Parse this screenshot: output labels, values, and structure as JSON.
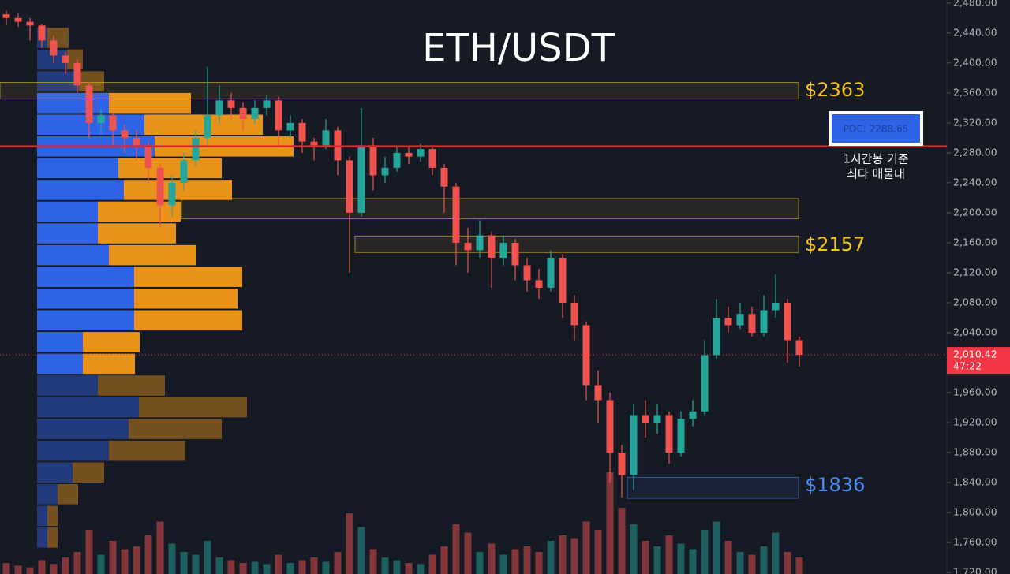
{
  "chart_data": {
    "type": "candlestick",
    "title": "ETH/USDT",
    "up_color": "#26a69a",
    "down_color": "#ef5350",
    "ylim": [
      1718,
      2484
    ],
    "yticks": [
      {
        "value": 2480,
        "label": "2,480.00"
      },
      {
        "value": 2440,
        "label": "2,440.00"
      },
      {
        "value": 2400,
        "label": "2,400.00"
      },
      {
        "value": 2360,
        "label": "2,360.00"
      },
      {
        "value": 2320,
        "label": "2,320.00"
      },
      {
        "value": 2280,
        "label": "2,280.00"
      },
      {
        "value": 2240,
        "label": "2,240.00"
      },
      {
        "value": 2200,
        "label": "2,200.00"
      },
      {
        "value": 2160,
        "label": "2,160.00"
      },
      {
        "value": 2120,
        "label": "2,120.00"
      },
      {
        "value": 2080,
        "label": "2,080.00"
      },
      {
        "value": 2040,
        "label": "2,040.00"
      },
      {
        "value": 1960,
        "label": "1,960.00"
      },
      {
        "value": 1920,
        "label": "1,920.00"
      },
      {
        "value": 1880,
        "label": "1,880.00"
      },
      {
        "value": 1840,
        "label": "1,840.00"
      },
      {
        "value": 1800,
        "label": "1,800.00"
      },
      {
        "value": 1760,
        "label": "1,760.00"
      },
      {
        "value": 1720,
        "label": "1,720.00"
      }
    ],
    "open": [
      2465,
      2460,
      2455,
      2450,
      2430,
      2410,
      2400,
      2370,
      2320,
      2330,
      2310,
      2300,
      2290,
      2260,
      2210,
      2240,
      2270,
      2300,
      2330,
      2350,
      2340,
      2325,
      2340,
      2350,
      2310,
      2320,
      2295,
      2290,
      2310,
      2270,
      2200,
      2290,
      2250,
      2260,
      2280,
      2275,
      2285,
      2260,
      2235,
      2160,
      2150,
      2170,
      2140,
      2160,
      2130,
      2110,
      2100,
      2140,
      2080,
      2050,
      1970,
      1950,
      1880,
      1850,
      1930,
      1920,
      1930,
      1880,
      1925,
      1935,
      2010,
      2060,
      2050,
      2065,
      2040,
      2070,
      2080,
      2030
    ],
    "high": [
      2470,
      2466,
      2460,
      2452,
      2436,
      2415,
      2405,
      2375,
      2340,
      2335,
      2318,
      2310,
      2295,
      2265,
      2250,
      2280,
      2310,
      2395,
      2370,
      2360,
      2348,
      2350,
      2358,
      2355,
      2330,
      2325,
      2300,
      2325,
      2315,
      2275,
      2340,
      2300,
      2275,
      2290,
      2288,
      2292,
      2290,
      2265,
      2240,
      2180,
      2190,
      2175,
      2170,
      2165,
      2140,
      2125,
      2150,
      2145,
      2090,
      2055,
      1990,
      1960,
      1890,
      1945,
      1950,
      1945,
      1935,
      1935,
      1950,
      2030,
      2085,
      2075,
      2080,
      2075,
      2090,
      2118,
      2085,
      2035
    ],
    "low": [
      2450,
      2448,
      2430,
      2420,
      2400,
      2385,
      2360,
      2300,
      2305,
      2290,
      2280,
      2270,
      2240,
      2180,
      2195,
      2230,
      2262,
      2290,
      2320,
      2325,
      2310,
      2318,
      2330,
      2290,
      2300,
      2280,
      2270,
      2285,
      2250,
      2120,
      2195,
      2230,
      2240,
      2255,
      2265,
      2268,
      2250,
      2200,
      2130,
      2120,
      2140,
      2100,
      2130,
      2110,
      2095,
      2085,
      2095,
      2060,
      2030,
      1950,
      1920,
      1840,
      1820,
      1830,
      1900,
      1905,
      1865,
      1875,
      1915,
      1930,
      2005,
      2040,
      2045,
      2035,
      2035,
      2060,
      2000,
      1995
    ],
    "close": [
      2460,
      2455,
      2450,
      2430,
      2410,
      2400,
      2370,
      2320,
      2330,
      2310,
      2300,
      2290,
      2260,
      2210,
      2240,
      2270,
      2300,
      2330,
      2350,
      2340,
      2325,
      2340,
      2350,
      2310,
      2320,
      2295,
      2290,
      2310,
      2270,
      2200,
      2290,
      2250,
      2260,
      2280,
      2275,
      2285,
      2260,
      2235,
      2160,
      2150,
      2170,
      2140,
      2160,
      2130,
      2110,
      2100,
      2140,
      2080,
      2050,
      1970,
      1950,
      1880,
      1850,
      1930,
      1920,
      1930,
      1880,
      1925,
      1935,
      2010,
      2060,
      2050,
      2065,
      2040,
      2070,
      2080,
      2030,
      2010.42
    ],
    "volume": [
      20,
      15,
      12,
      25,
      18,
      30,
      40,
      80,
      35,
      60,
      45,
      50,
      70,
      95,
      55,
      40,
      35,
      60,
      30,
      25,
      20,
      22,
      18,
      35,
      20,
      25,
      30,
      22,
      40,
      110,
      85,
      45,
      30,
      25,
      20,
      18,
      35,
      50,
      90,
      75,
      40,
      55,
      35,
      45,
      50,
      40,
      60,
      70,
      65,
      95,
      80,
      185,
      120,
      90,
      60,
      50,
      70,
      55,
      45,
      80,
      95,
      60,
      40,
      35,
      50,
      75,
      40,
      30
    ],
    "profile": {
      "bins": [
        2448,
        2419,
        2390,
        2361,
        2332,
        2303,
        2274,
        2245,
        2216,
        2187,
        2158,
        2129,
        2100,
        2071,
        2042,
        2013,
        1984,
        1955,
        1926,
        1897,
        1868,
        1839,
        1810,
        1781,
        1752
      ],
      "buy": [
        13,
        38,
        53,
        91,
        136,
        149,
        103,
        110,
        77,
        77,
        91,
        123,
        123,
        123,
        58,
        58,
        77,
        129,
        116,
        91,
        45,
        26,
        13,
        13
      ],
      "sell": [
        27,
        20,
        32,
        104,
        150,
        176,
        131,
        137,
        105,
        99,
        110,
        137,
        131,
        137,
        72,
        66,
        85,
        137,
        118,
        97,
        40,
        26,
        13,
        13
      ],
      "buy_color": "#2f63e6",
      "sell_color": "#e8921a",
      "value_area_rows": [
        3,
        15
      ]
    },
    "zones": [
      {
        "low": 2352,
        "high": 2374,
        "value": 2363,
        "label": "$2363",
        "color": "#f5c518"
      },
      {
        "low": 2192,
        "high": 2219,
        "color": "#f5c518"
      },
      {
        "low": 2147,
        "high": 2169,
        "value": 2157,
        "label": "$2157",
        "color": "#f5c518"
      },
      {
        "low": 1819,
        "high": 1847,
        "value": 1836,
        "label": "$1836",
        "color": "#4d8cf5"
      }
    ],
    "poc": {
      "value": 2288.65,
      "label": "POC: 2288.65",
      "note": [
        "1시간봉 기준",
        "최다 매물대"
      ],
      "color": "#e0262f"
    },
    "last": {
      "value": 2010.42,
      "label": "2,010.42",
      "countdown": "47:22",
      "color": "#f23645"
    }
  }
}
